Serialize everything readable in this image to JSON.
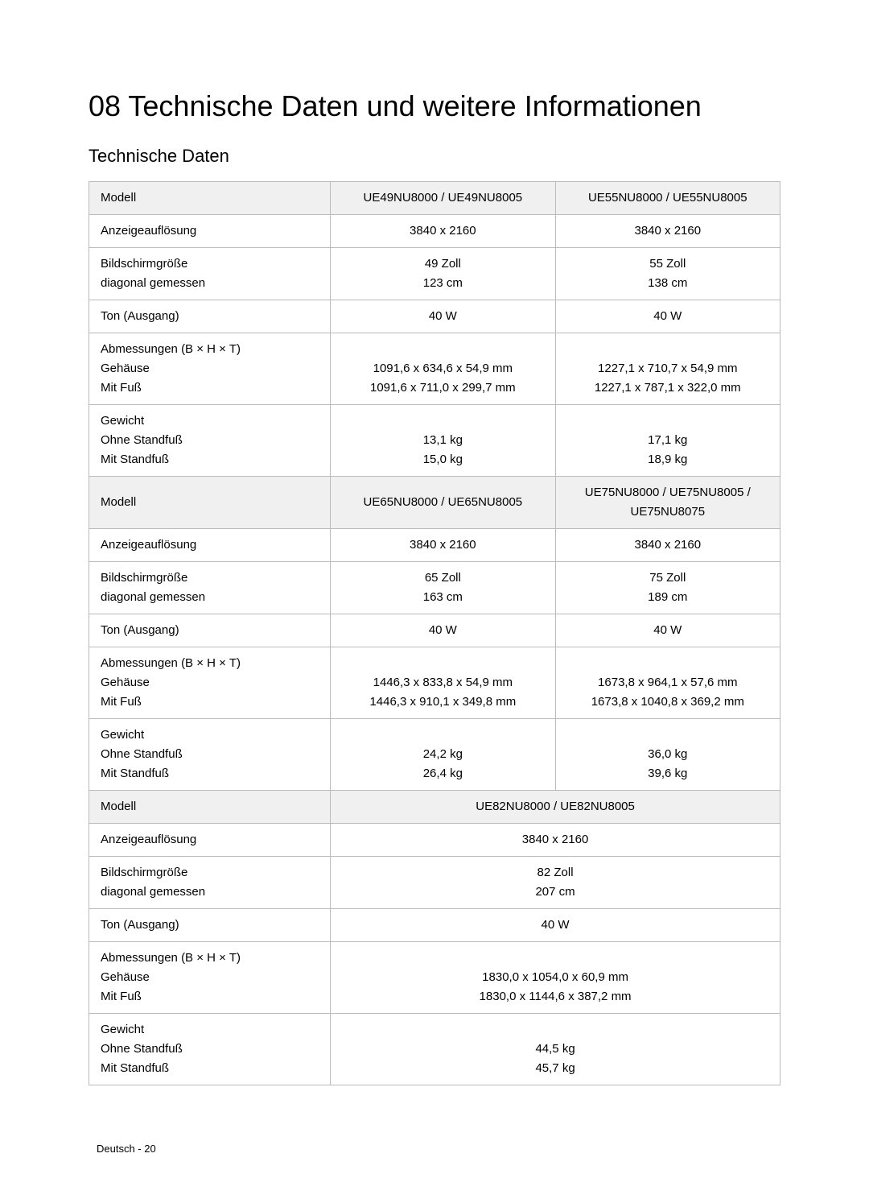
{
  "chapter_title": "08 Technische Daten und weitere Informationen",
  "section_title": "Technische Daten",
  "labels": {
    "modell": "Modell",
    "anzeige": "Anzeigeauflösung",
    "bildschirm": "Bildschirmgröße",
    "diagonal": "diagonal gemessen",
    "ton": "Ton (Ausgang)",
    "abmess": "Abmessungen (B × H × T)",
    "gehaeuse": "Gehäuse",
    "mitfuss": "Mit Fuß",
    "gewicht": "Gewicht",
    "ohnestand": "Ohne Standfuß",
    "mitstand": "Mit Standfuß"
  },
  "group1": {
    "model_a": "UE49NU8000 / UE49NU8005",
    "model_b": "UE55NU8000 / UE55NU8005",
    "res_a": "3840 x 2160",
    "res_b": "3840 x 2160",
    "screen_a": "49 Zoll",
    "screen_b": "55 Zoll",
    "diag_a": "123 cm",
    "diag_b": "138 cm",
    "ton_a": "40 W",
    "ton_b": "40 W",
    "geh_a": "1091,6 x 634,6 x 54,9 mm",
    "geh_b": "1227,1 x 710,7 x 54,9 mm",
    "fuss_a": "1091,6 x 711,0 x 299,7 mm",
    "fuss_b": "1227,1 x 787,1 x 322,0 mm",
    "ohne_a": "13,1 kg",
    "ohne_b": "17,1 kg",
    "mit_a": "15,0 kg",
    "mit_b": "18,9 kg"
  },
  "group2": {
    "model_a": "UE65NU8000 / UE65NU8005",
    "model_b": "UE75NU8000 / UE75NU8005 / UE75NU8075",
    "res_a": "3840 x 2160",
    "res_b": "3840 x 2160",
    "screen_a": "65 Zoll",
    "screen_b": "75 Zoll",
    "diag_a": "163 cm",
    "diag_b": "189 cm",
    "ton_a": "40 W",
    "ton_b": "40 W",
    "geh_a": "1446,3 x 833,8 x 54,9 mm",
    "geh_b": "1673,8 x 964,1 x 57,6 mm",
    "fuss_a": "1446,3 x 910,1 x 349,8 mm",
    "fuss_b": "1673,8 x 1040,8 x 369,2 mm",
    "ohne_a": "24,2 kg",
    "ohne_b": "36,0 kg",
    "mit_a": "26,4 kg",
    "mit_b": "39,6 kg"
  },
  "group3": {
    "model": "UE82NU8000 / UE82NU8005",
    "res": "3840 x 2160",
    "screen": "82 Zoll",
    "diag": "207 cm",
    "ton": "40 W",
    "geh": "1830,0 x 1054,0 x 60,9 mm",
    "fuss": "1830,0 x 1144,6 x 387,2 mm",
    "ohne": "44,5 kg",
    "mit": "45,7 kg"
  },
  "footer": "Deutsch - 20",
  "styling": {
    "header_bg": "#f0f0f0",
    "border_color": "#bbbbbb",
    "label_col_width": "29%",
    "value_col_width": "27%",
    "body_font_size": 15,
    "title_font_size": 36,
    "section_font_size": 22
  }
}
